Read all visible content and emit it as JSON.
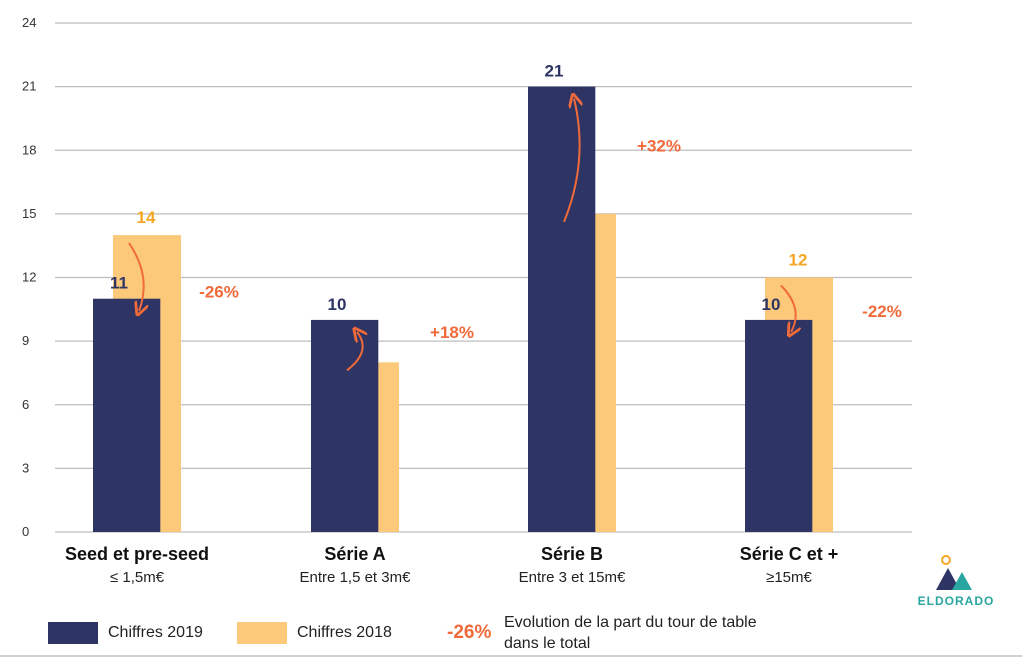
{
  "chart_data": {
    "type": "bar",
    "categories": [
      "Seed et pre-seed",
      "Série A",
      "Série B",
      "Série C et +"
    ],
    "category_subtitles": [
      "≤ 1,5m€",
      "Entre 1,5 et 3m€",
      "Entre 3 et 15m€",
      "≥15m€"
    ],
    "series": [
      {
        "name": "Chiffres 2019",
        "values": [
          11,
          10,
          21,
          10
        ],
        "color": "#2e3565"
      },
      {
        "name": "Chiffres 2018",
        "values": [
          14,
          8,
          15,
          12
        ],
        "color": "#fcc97b"
      }
    ],
    "data_labels_2019": [
      "11",
      "10",
      "21",
      "10"
    ],
    "data_labels_2018": [
      "14",
      "",
      "",
      "12"
    ],
    "evolution": [
      "-26%",
      "+18%",
      "+32%",
      "-22%"
    ],
    "ylim": [
      0,
      24
    ],
    "yticks": [
      "0",
      "3",
      "6",
      "9",
      "12",
      "15",
      "18",
      "21",
      "24"
    ],
    "grid": true,
    "legend_position": "bottom-left"
  },
  "legend": {
    "pct_example": "-26%",
    "note": "Evolution de la part du tour de table dans le total"
  },
  "logo": {
    "text": "ELDORADO"
  },
  "colors": {
    "navy": "#2e3565",
    "peach": "#fcc97b",
    "orange_label": "#f5a623",
    "pct_orange": "#f06a3a",
    "grid": "#bdbdbd"
  }
}
